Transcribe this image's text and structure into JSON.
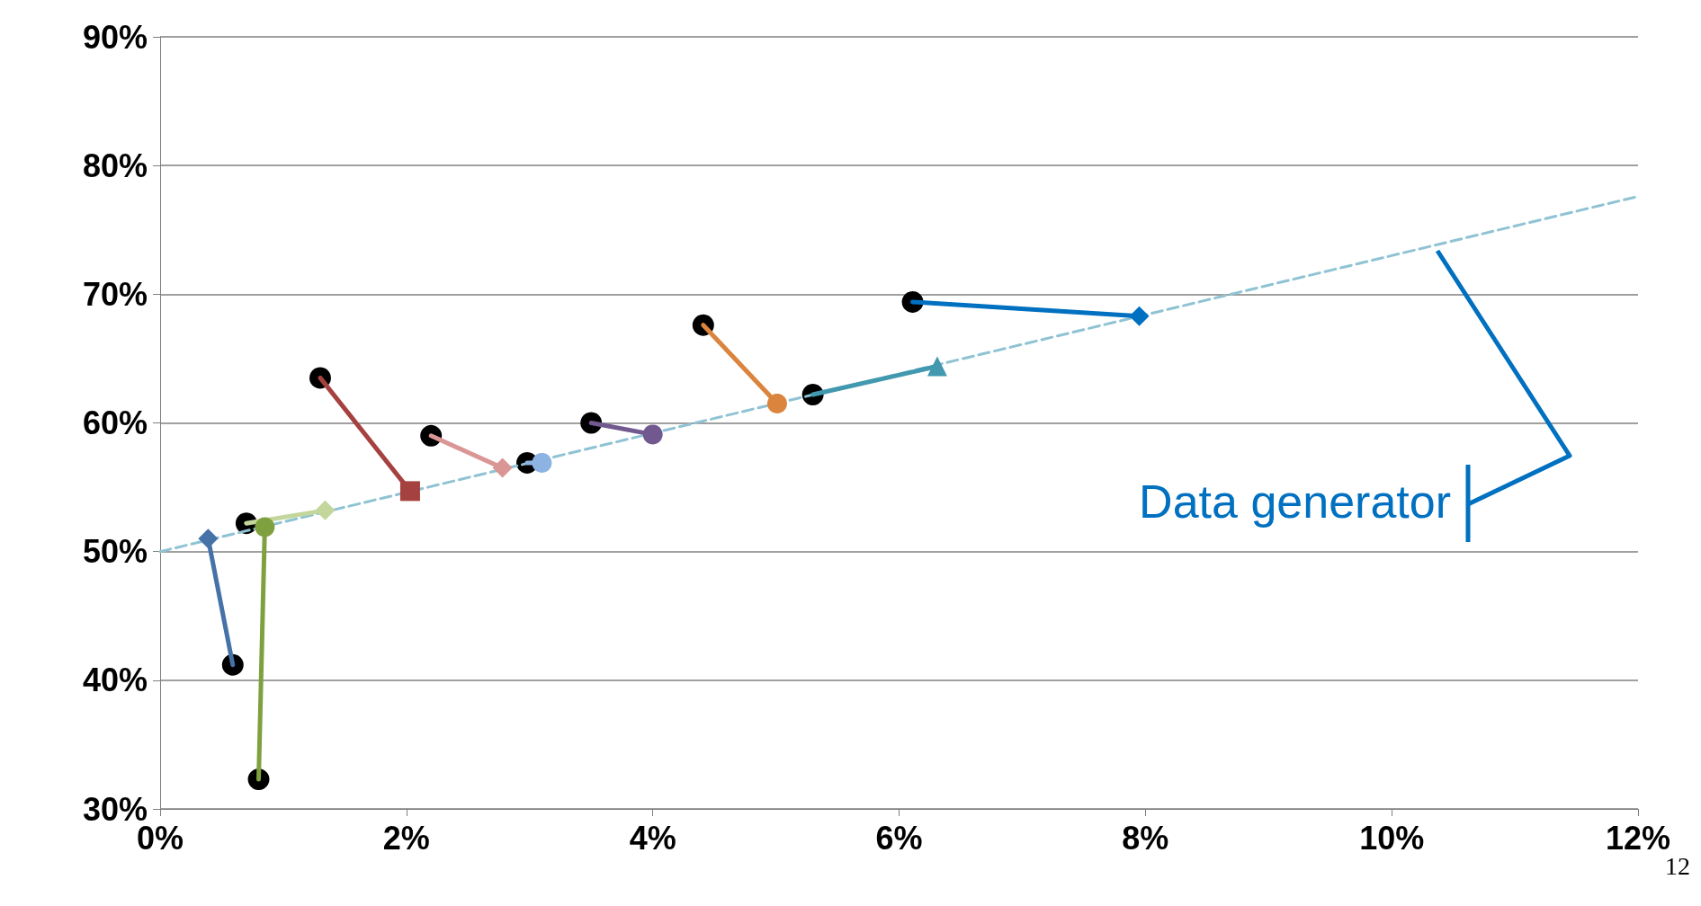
{
  "chart_data": {
    "type": "line",
    "xlim": [
      0,
      12
    ],
    "ylim": [
      30,
      90
    ],
    "xticks": [
      {
        "value": 0,
        "label": "0%"
      },
      {
        "value": 2,
        "label": "2%"
      },
      {
        "value": 4,
        "label": "4%"
      },
      {
        "value": 6,
        "label": "6%"
      },
      {
        "value": 8,
        "label": "8%"
      },
      {
        "value": 10,
        "label": "10%"
      },
      {
        "value": 12,
        "label": "12%"
      }
    ],
    "yticks": [
      {
        "value": 30,
        "label": "30%"
      },
      {
        "value": 40,
        "label": "40%"
      },
      {
        "value": 50,
        "label": "50%"
      },
      {
        "value": 60,
        "label": "60%"
      },
      {
        "value": 70,
        "label": "70%"
      },
      {
        "value": 80,
        "label": "80%"
      },
      {
        "value": 90,
        "label": "90%"
      }
    ],
    "grid": "y",
    "annotations": [
      "Data generator",
      "12"
    ],
    "series": [
      {
        "line_style": "dashed",
        "marker": "none",
        "color": "#8fc3d4",
        "x": [
          0,
          12
        ],
        "values": [
          50,
          77.6
        ]
      },
      {
        "type": "line",
        "marker": "diamond",
        "color": "#4572a7",
        "x": [
          0.59,
          0.39
        ],
        "values": [
          41.2,
          51.0
        ]
      },
      {
        "type": "line",
        "marker": "circle",
        "color": "#7fa03f",
        "x": [
          0.8,
          0.85
        ],
        "values": [
          32.3,
          51.9
        ]
      },
      {
        "type": "line",
        "marker": "diamond",
        "color": "#c3d69b",
        "x": [
          0.7,
          1.34
        ],
        "values": [
          52.2,
          53.2
        ]
      },
      {
        "type": "line",
        "marker": "square",
        "color": "#a5413f",
        "x": [
          1.3,
          2.03
        ],
        "values": [
          63.5,
          54.7
        ]
      },
      {
        "type": "line",
        "marker": "diamond",
        "color": "#d99694",
        "x": [
          2.2,
          2.78
        ],
        "values": [
          59.0,
          56.5
        ]
      },
      {
        "type": "line",
        "marker": "circle",
        "color": "#8db3e2",
        "x": [
          2.98,
          3.1
        ],
        "values": [
          56.9,
          56.9
        ]
      },
      {
        "type": "line",
        "marker": "circle",
        "color": "#71588f",
        "x": [
          3.5,
          4.0
        ],
        "values": [
          60.0,
          59.1
        ]
      },
      {
        "type": "line",
        "marker": "circle",
        "color": "#db843d",
        "x": [
          4.41,
          5.01
        ],
        "values": [
          67.6,
          61.5
        ]
      },
      {
        "type": "line",
        "marker": "triangle",
        "color": "#4198af",
        "x": [
          5.3,
          6.31
        ],
        "values": [
          62.2,
          64.4
        ]
      },
      {
        "type": "line",
        "marker": "diamond",
        "color": "#0070c0",
        "x": [
          6.11,
          7.95
        ],
        "values": [
          69.4,
          68.3
        ]
      },
      {
        "type": "scatter",
        "marker": "circle",
        "color": "#000000",
        "x": [
          0.59,
          0.8,
          0.7,
          1.3,
          2.2,
          2.98,
          3.5,
          4.41,
          5.3,
          6.11
        ],
        "values": [
          41.2,
          32.3,
          52.2,
          63.5,
          59.0,
          56.9,
          60.0,
          67.6,
          62.2,
          69.4
        ]
      }
    ]
  }
}
